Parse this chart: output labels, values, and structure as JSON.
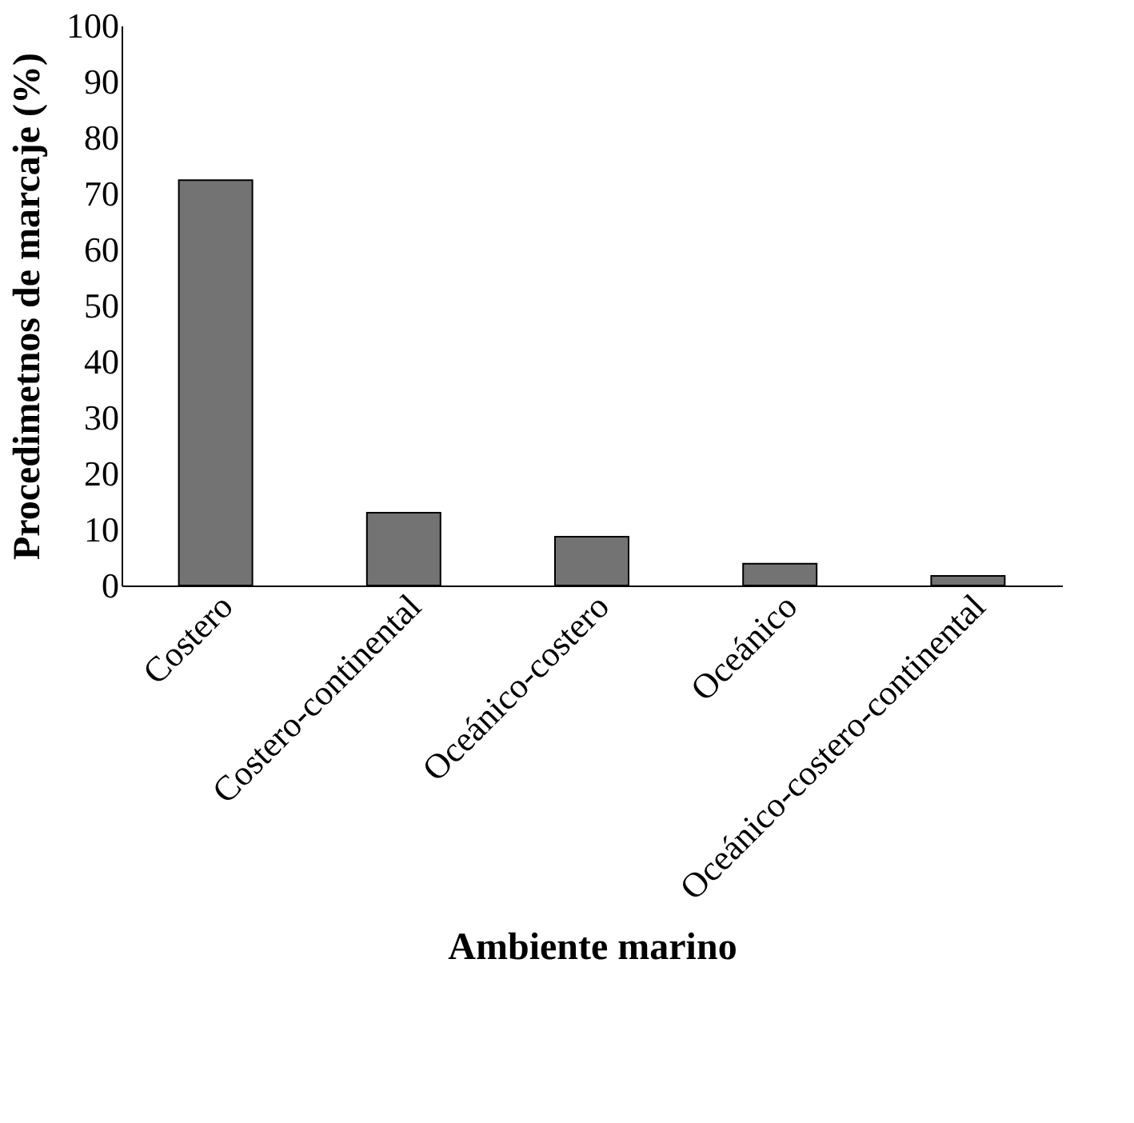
{
  "chart_data": {
    "type": "bar",
    "xlabel": "Ambiente marino",
    "ylabel": "Procedimetnos de marcaje (%)",
    "categories": [
      "Costero",
      "Costero-continental",
      "Oceánico-costero",
      "Oceánico",
      "Oceánico-costero-continental"
    ],
    "values": [
      72.4,
      13.0,
      8.7,
      3.9,
      1.7
    ],
    "color": "#737373",
    "ylim": [
      0,
      100
    ],
    "yticks": [
      0,
      10,
      20,
      30,
      40,
      50,
      60,
      70,
      80,
      90,
      100
    ],
    "grid": false
  }
}
